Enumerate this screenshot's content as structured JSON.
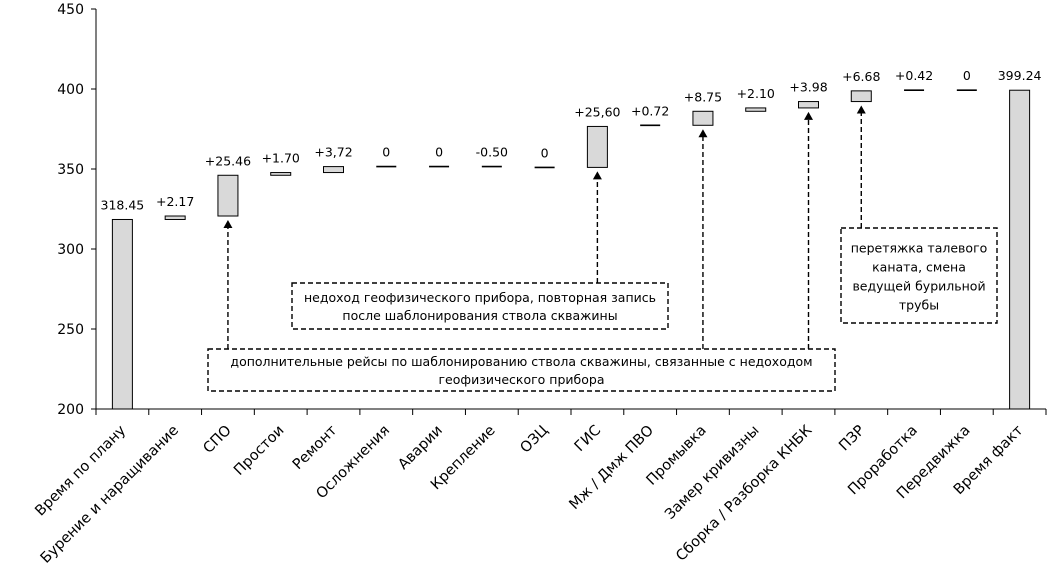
{
  "chart_data": {
    "type": "bar",
    "subtype": "waterfall",
    "ylim": [
      200,
      450
    ],
    "yticks": [
      200,
      250,
      300,
      350,
      400,
      450
    ],
    "grid": false,
    "bar_fill": "#d9d9d9",
    "bar_stroke": "#000000",
    "items": [
      {
        "category": "Время по плану",
        "kind": "total",
        "value": 318.45,
        "label": "318.45"
      },
      {
        "category": "Бурение и наращивание",
        "kind": "delta",
        "value": 2.17,
        "label": "+2.17"
      },
      {
        "category": "СПО",
        "kind": "delta",
        "value": 25.46,
        "label": "+25.46"
      },
      {
        "category": "Простои",
        "kind": "delta",
        "value": 1.7,
        "label": "+1.70"
      },
      {
        "category": "Ремонт",
        "kind": "delta",
        "value": 3.72,
        "label": "+3,72"
      },
      {
        "category": "Осложнения",
        "kind": "delta",
        "value": 0,
        "label": "0"
      },
      {
        "category": "Аварии",
        "kind": "delta",
        "value": 0,
        "label": "0"
      },
      {
        "category": "Крепление",
        "kind": "delta",
        "value": -0.5,
        "label": "-0.50"
      },
      {
        "category": "ОЗЦ",
        "kind": "delta",
        "value": 0,
        "label": "0"
      },
      {
        "category": "ГИС",
        "kind": "delta",
        "value": 25.6,
        "label": "+25,60"
      },
      {
        "category": "Мж / Дмж ПВО",
        "kind": "delta",
        "value": 0.72,
        "label": "+0.72"
      },
      {
        "category": "Промывка",
        "kind": "delta",
        "value": 8.75,
        "label": "+8.75"
      },
      {
        "category": "Замер кривизны",
        "kind": "delta",
        "value": 2.1,
        "label": "+2.10"
      },
      {
        "category": "Сборка / Разборка КНБК",
        "kind": "delta",
        "value": 3.98,
        "label": "+3.98"
      },
      {
        "category": "ПЗР",
        "kind": "delta",
        "value": 6.68,
        "label": "+6.68"
      },
      {
        "category": "Проработка",
        "kind": "delta",
        "value": 0.42,
        "label": "+0.42"
      },
      {
        "category": "Передвижка",
        "kind": "delta",
        "value": 0,
        "label": "0"
      },
      {
        "category": "Время факт",
        "kind": "total",
        "value": 399.24,
        "label": "399.24"
      }
    ],
    "annotations": [
      {
        "lines": [
          "недоход геофизического прибора, повторная запись",
          "после шаблонирования ствола скважины"
        ],
        "arrow_to": [
          "ГИС"
        ]
      },
      {
        "lines": [
          "дополнительные рейсы по шаблонированию ствола скважины, связанные с недоходом",
          "геофизического прибора"
        ],
        "arrow_to": [
          "СПО",
          "Промывка",
          "Сборка / Разборка КНБК"
        ]
      },
      {
        "lines": [
          "перетяжка талевого",
          "каната, смена",
          "ведущей бурильной",
          "трубы"
        ],
        "arrow_to": [
          "ПЗР"
        ]
      }
    ]
  }
}
